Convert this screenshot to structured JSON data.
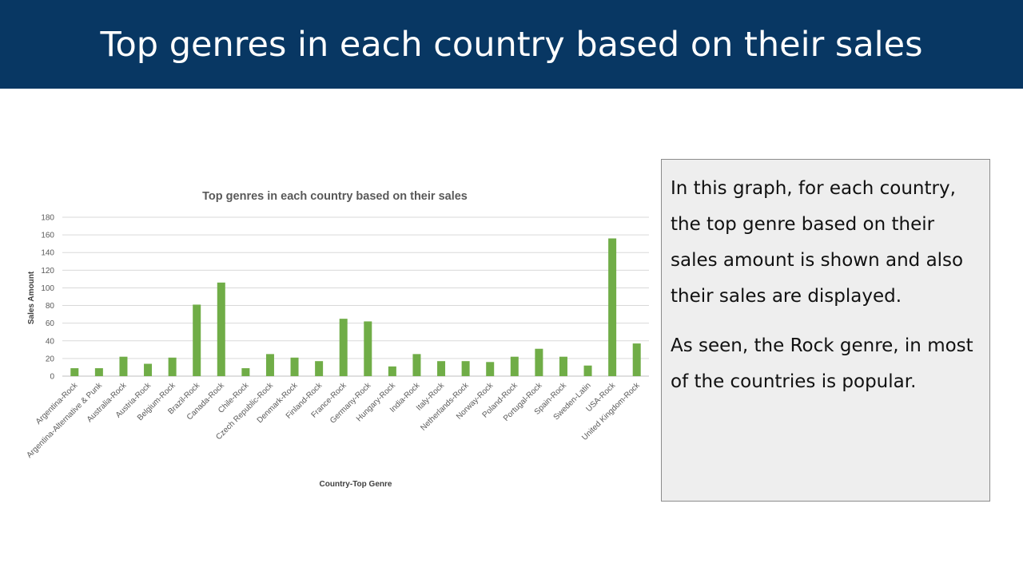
{
  "slide": {
    "title": "Top genres in each country based on their sales",
    "paragraphs": [
      "In this graph, for each country, the top genre based on their sales amount is shown and also their sales are displayed.",
      "As seen, the Rock genre, in most of the countries is popular."
    ]
  },
  "chart_data": {
    "type": "bar",
    "title": "Top genres in each country based on their sales",
    "xlabel": "Country-Top Genre",
    "ylabel": "Sales Amount",
    "ylim": [
      0,
      180
    ],
    "yticks": [
      0,
      20,
      40,
      60,
      80,
      100,
      120,
      140,
      160,
      180
    ],
    "grid": true,
    "bar_color": "#70ad47",
    "categories": [
      "Argentina-Rock",
      "Argentina-Alternative & Punk",
      "Australia-Rock",
      "Austria-Rock",
      "Belgium-Rock",
      "Brazil-Rock",
      "Canada-Rock",
      "Chile-Rock",
      "Czech Republic-Rock",
      "Denmark-Rock",
      "Finland-Rock",
      "France-Rock",
      "Germany-Rock",
      "Hungary-Rock",
      "India-Rock",
      "Italy-Rock",
      "Netherlands-Rock",
      "Norway-Rock",
      "Poland-Rock",
      "Portugal-Rock",
      "Spain-Rock",
      "Sweden-Latin",
      "USA-Rock",
      "United Kingdom-Rock"
    ],
    "values": [
      9,
      9,
      22,
      14,
      21,
      81,
      106,
      9,
      25,
      21,
      17,
      65,
      62,
      11,
      25,
      17,
      17,
      16,
      22,
      31,
      22,
      12,
      156,
      37
    ]
  }
}
